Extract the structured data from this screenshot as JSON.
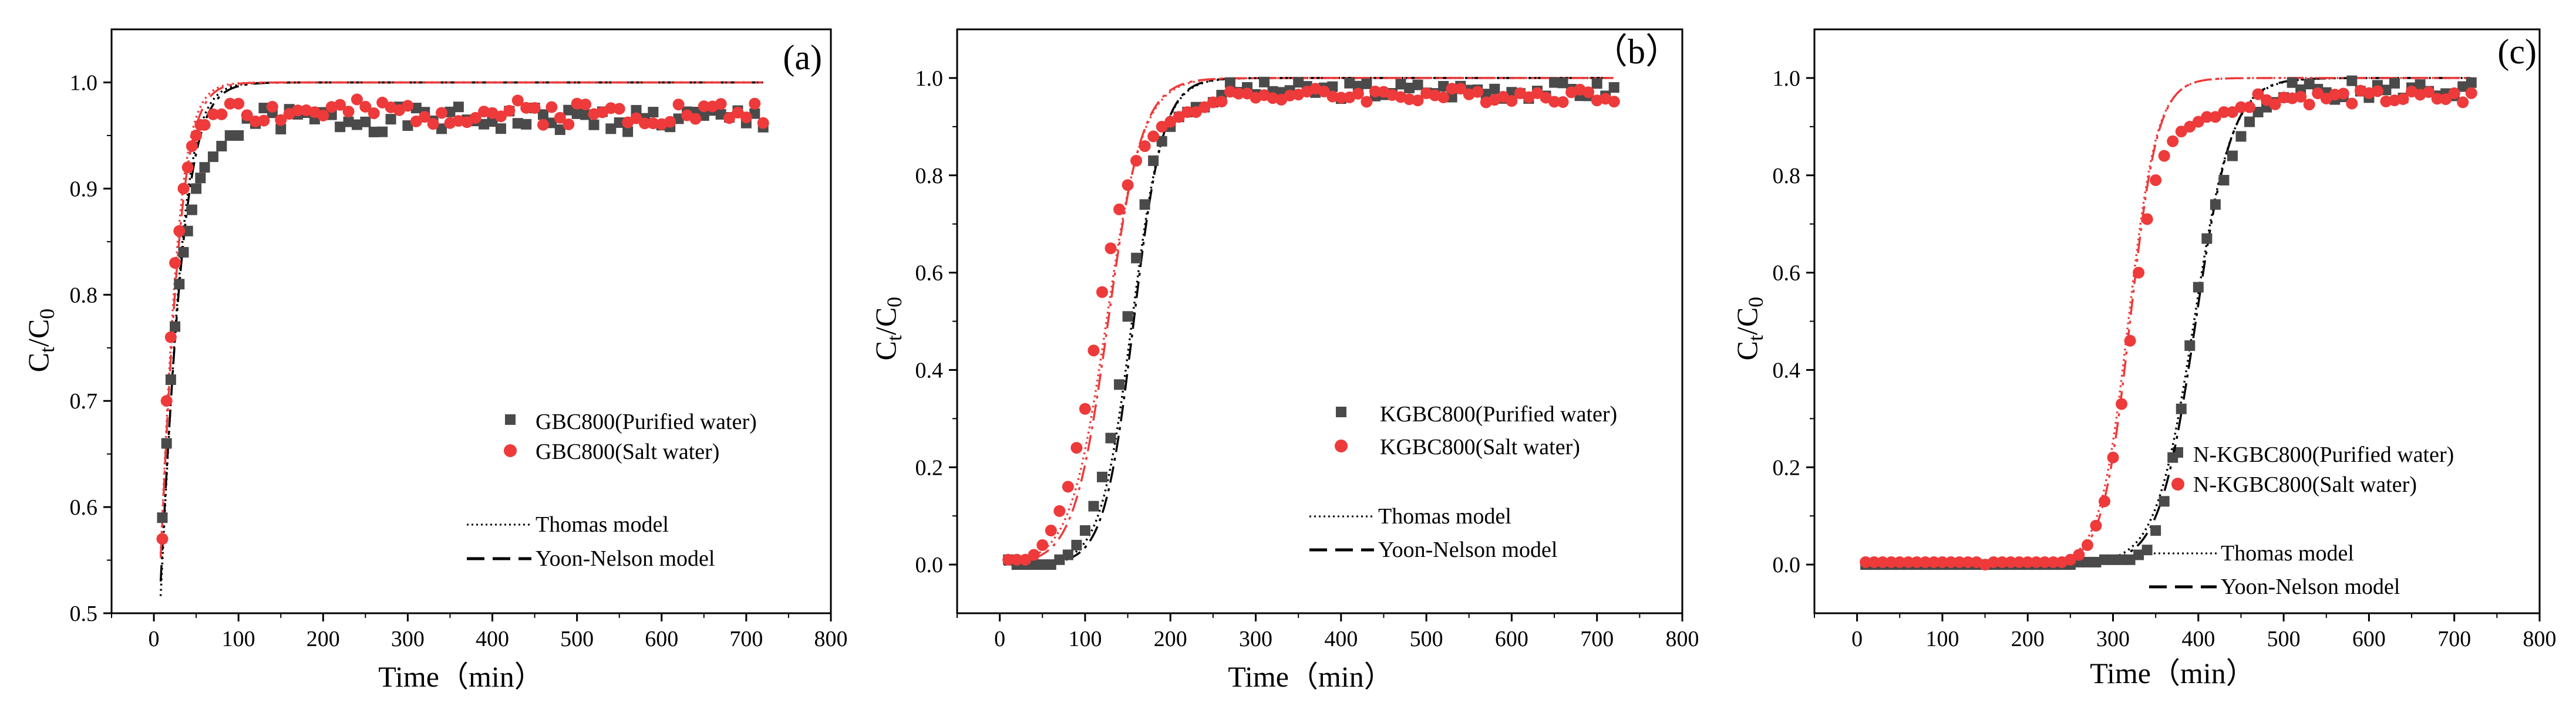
{
  "chart_data": [
    {
      "panel_label": "(a)",
      "type": "scatter",
      "xlabel": "Time（min）",
      "ylabel_main": "C",
      "ylabel_sub_t": "t",
      "ylabel_slash": "/C",
      "ylabel_sub_0": "0",
      "xlim": [
        -50,
        800
      ],
      "ylim": [
        0.5,
        1.05
      ],
      "xticks": [
        0,
        100,
        200,
        300,
        400,
        500,
        600,
        700,
        800
      ],
      "xtick_labels": [
        "0",
        "100",
        "200",
        "300",
        "400",
        "500",
        "600",
        "700",
        "800"
      ],
      "yticks": [
        0.5,
        0.6,
        0.7,
        0.8,
        0.9,
        1.0
      ],
      "ytick_labels": [
        "0.5",
        "0.6",
        "0.7",
        "0.8",
        "0.9",
        "1.0"
      ],
      "legend_entries": [
        "GBC800(Purified water)",
        "GBC800(Salt water)"
      ],
      "model_legend": [
        "Thomas model",
        "Yoon-Nelson model"
      ],
      "series": [
        {
          "name": "GBC800(Purified water)",
          "color": "#4a4a4a",
          "marker": "square",
          "x": [
            10,
            15,
            20,
            25,
            30,
            35,
            40,
            45,
            50,
            55,
            60,
            70,
            80,
            90,
            100
          ],
          "y": [
            0.59,
            0.66,
            0.72,
            0.77,
            0.81,
            0.84,
            0.86,
            0.88,
            0.9,
            0.91,
            0.92,
            0.93,
            0.94,
            0.95,
            0.95
          ],
          "plateau_from": 110,
          "plateau_base": 0.965,
          "plateau_amp": 0.012,
          "plateau_seed": 1
        },
        {
          "name": "GBC800(Salt water)",
          "color": "#ee3a3a",
          "marker": "circle",
          "x": [
            10,
            15,
            20,
            25,
            30,
            35,
            40,
            45,
            50,
            55,
            60,
            70,
            80,
            90,
            100
          ],
          "y": [
            0.57,
            0.7,
            0.76,
            0.83,
            0.86,
            0.9,
            0.92,
            0.94,
            0.95,
            0.96,
            0.96,
            0.97,
            0.97,
            0.98,
            0.98
          ],
          "plateau_from": 110,
          "plateau_base": 0.972,
          "plateau_amp": 0.012,
          "plateau_seed": 2
        }
      ],
      "models": [
        {
          "name": "Thomas model",
          "style": "dotted",
          "color": "#000000",
          "k": 0.065,
          "t50": 7,
          "ymax": 1.0
        },
        {
          "name": "Yoon-Nelson model",
          "style": "dashdot",
          "color": "#000000",
          "k": 0.06,
          "t50": 6,
          "ymax": 1.0
        },
        {
          "name": "Thomas model (salt)",
          "style": "dotted",
          "color": "#ee3a3a",
          "k": 0.075,
          "t50": 5,
          "ymax": 1.0
        },
        {
          "name": "Yoon-Nelson model (salt)",
          "style": "dashdot",
          "color": "#ee3a3a",
          "k": 0.07,
          "t50": 5,
          "ymax": 1.0
        }
      ]
    },
    {
      "panel_label": "（b）",
      "type": "scatter",
      "xlabel": "Time（min）",
      "ylabel_main": "C",
      "ylabel_sub_t": "t",
      "ylabel_slash": "/C",
      "ylabel_sub_0": "0",
      "xlim": [
        -50,
        800
      ],
      "ylim": [
        -0.1,
        1.1
      ],
      "xticks": [
        0,
        100,
        200,
        300,
        400,
        500,
        600,
        700,
        800
      ],
      "xtick_labels": [
        "0",
        "100",
        "200",
        "300",
        "400",
        "500",
        "600",
        "700",
        "800"
      ],
      "yticks": [
        0.0,
        0.2,
        0.4,
        0.6,
        0.8,
        1.0
      ],
      "ytick_labels": [
        "0.0",
        "0.2",
        "0.4",
        "0.6",
        "0.8",
        "1.0"
      ],
      "legend_entries": [
        "KGBC800(Purified water)",
        "KGBC800(Salt water)"
      ],
      "model_legend": [
        "Thomas model",
        "Yoon-Nelson model"
      ],
      "series": [
        {
          "name": "KGBC800(Purified water)",
          "color": "#4a4a4a",
          "marker": "square",
          "x": [
            10,
            20,
            30,
            40,
            50,
            60,
            70,
            80,
            90,
            100,
            110,
            120,
            130,
            140,
            150,
            160,
            170,
            180,
            190,
            200,
            210,
            220,
            230,
            240,
            250
          ],
          "y": [
            0.01,
            0.0,
            0.0,
            0.0,
            0.0,
            0.0,
            0.01,
            0.02,
            0.04,
            0.07,
            0.12,
            0.18,
            0.26,
            0.37,
            0.51,
            0.63,
            0.74,
            0.83,
            0.87,
            0.9,
            0.92,
            0.93,
            0.94,
            0.94,
            0.95
          ],
          "plateau_from": 260,
          "plateau_base": 0.975,
          "plateau_amp": 0.018,
          "plateau_seed": 3
        },
        {
          "name": "KGBC800(Salt water)",
          "color": "#ee3a3a",
          "marker": "circle",
          "x": [
            10,
            20,
            30,
            40,
            50,
            60,
            70,
            80,
            90,
            100,
            110,
            120,
            130,
            140,
            150,
            160,
            170,
            180,
            190,
            200,
            210,
            220,
            230,
            240,
            250
          ],
          "y": [
            0.01,
            0.01,
            0.01,
            0.02,
            0.04,
            0.07,
            0.11,
            0.16,
            0.24,
            0.32,
            0.44,
            0.56,
            0.65,
            0.73,
            0.78,
            0.83,
            0.86,
            0.88,
            0.9,
            0.91,
            0.92,
            0.93,
            0.93,
            0.94,
            0.95
          ],
          "plateau_from": 260,
          "plateau_base": 0.965,
          "plateau_amp": 0.015,
          "plateau_seed": 4
        }
      ],
      "models": [
        {
          "name": "Thomas model",
          "style": "dotted",
          "color": "#000000",
          "k": 0.055,
          "t50": 155,
          "ymax": 1.0
        },
        {
          "name": "Yoon-Nelson model",
          "style": "dashdot",
          "color": "#000000",
          "k": 0.058,
          "t50": 157,
          "ymax": 1.0
        },
        {
          "name": "Thomas model (salt)",
          "style": "dotted",
          "color": "#ee3a3a",
          "k": 0.047,
          "t50": 125,
          "ymax": 1.0
        },
        {
          "name": "Yoon-Nelson model (salt)",
          "style": "dashdot",
          "color": "#ee3a3a",
          "k": 0.05,
          "t50": 127,
          "ymax": 1.0
        }
      ]
    },
    {
      "panel_label": "(c)",
      "type": "scatter",
      "xlabel": "Time（min）",
      "ylabel_main": "C",
      "ylabel_sub_t": "t",
      "ylabel_slash": "/C",
      "ylabel_sub_0": "0",
      "xlim": [
        -50,
        800
      ],
      "ylim": [
        -0.1,
        1.1
      ],
      "xticks": [
        0,
        100,
        200,
        300,
        400,
        500,
        600,
        700,
        800
      ],
      "xtick_labels": [
        "0",
        "100",
        "200",
        "300",
        "400",
        "500",
        "600",
        "700",
        "800"
      ],
      "yticks": [
        0.0,
        0.2,
        0.4,
        0.6,
        0.8,
        1.0
      ],
      "ytick_labels": [
        "0.0",
        "0.2",
        "0.4",
        "0.6",
        "0.8",
        "1.0"
      ],
      "legend_entries": [
        "N-KGBC800(Purified water)",
        "N-KGBC800(Salt water)"
      ],
      "model_legend": [
        "Thomas model",
        "Yoon-Nelson model"
      ],
      "series": [
        {
          "name": "N-KGBC800(Purified water)",
          "color": "#4a4a4a",
          "marker": "square",
          "x": [
            10,
            20,
            30,
            40,
            50,
            60,
            70,
            80,
            90,
            100,
            110,
            120,
            130,
            140,
            150,
            160,
            170,
            180,
            190,
            200,
            210,
            220,
            230,
            240,
            250,
            260,
            270,
            280,
            290,
            300,
            310,
            320,
            330,
            340,
            350,
            360,
            370,
            380,
            390,
            400,
            410,
            420,
            430,
            440,
            450,
            460,
            470,
            480,
            490,
            500
          ],
          "y": [
            0,
            0,
            0,
            0,
            0,
            0,
            0,
            0,
            0,
            0,
            0,
            0,
            0,
            0,
            0,
            0,
            0,
            0,
            0,
            0,
            0,
            0,
            0,
            0,
            0,
            0.005,
            0.005,
            0.005,
            0.01,
            0.01,
            0.01,
            0.01,
            0.02,
            0.03,
            0.07,
            0.13,
            0.22,
            0.32,
            0.45,
            0.57,
            0.67,
            0.74,
            0.79,
            0.84,
            0.88,
            0.91,
            0.93,
            0.94,
            0.95,
            0.96
          ],
          "plateau_from": 510,
          "plateau_base": 0.975,
          "plateau_amp": 0.02,
          "plateau_seed": 5
        },
        {
          "name": "N-KGBC800(Salt water)",
          "color": "#ee3a3a",
          "marker": "circle",
          "x": [
            10,
            20,
            30,
            40,
            50,
            60,
            70,
            80,
            90,
            100,
            110,
            120,
            130,
            140,
            150,
            160,
            170,
            180,
            190,
            200,
            210,
            220,
            230,
            240,
            250,
            260,
            270,
            280,
            290,
            300,
            310,
            320,
            330,
            340,
            350,
            360,
            370,
            380,
            390,
            400,
            410,
            420,
            430,
            440,
            450,
            460
          ],
          "y": [
            0.005,
            0.005,
            0.005,
            0.005,
            0.005,
            0.005,
            0.005,
            0.005,
            0.005,
            0.005,
            0.005,
            0.005,
            0.005,
            0.005,
            0,
            0.005,
            0.005,
            0.005,
            0.005,
            0.005,
            0.005,
            0.005,
            0.005,
            0.005,
            0.01,
            0.02,
            0.04,
            0.08,
            0.13,
            0.22,
            0.33,
            0.46,
            0.6,
            0.71,
            0.79,
            0.84,
            0.87,
            0.89,
            0.9,
            0.91,
            0.92,
            0.92,
            0.93,
            0.93,
            0.94,
            0.94
          ],
          "plateau_from": 470,
          "plateau_base": 0.96,
          "plateau_amp": 0.015,
          "plateau_seed": 6
        }
      ],
      "models": [
        {
          "name": "Thomas model",
          "style": "dotted",
          "color": "#000000",
          "k": 0.045,
          "t50": 395,
          "ymax": 1.0
        },
        {
          "name": "Yoon-Nelson model",
          "style": "dashdot",
          "color": "#000000",
          "k": 0.047,
          "t50": 397,
          "ymax": 1.0
        },
        {
          "name": "Thomas model (salt)",
          "style": "dotted",
          "color": "#ee3a3a",
          "k": 0.06,
          "t50": 318,
          "ymax": 1.0
        },
        {
          "name": "Yoon-Nelson model (salt)",
          "style": "dashdot",
          "color": "#ee3a3a",
          "k": 0.062,
          "t50": 320,
          "ymax": 1.0
        }
      ]
    }
  ]
}
